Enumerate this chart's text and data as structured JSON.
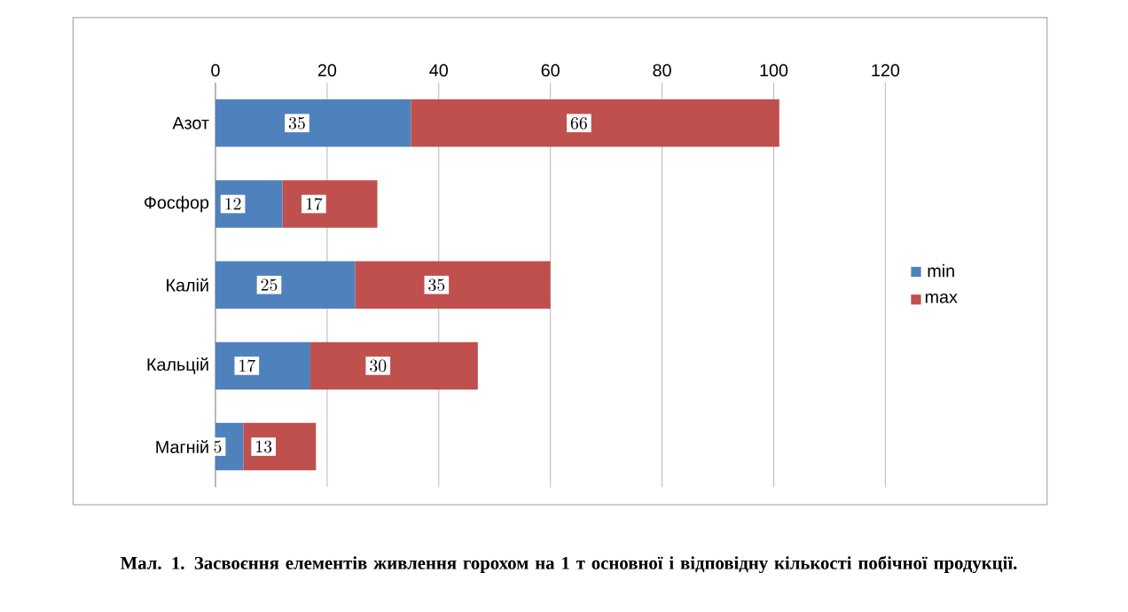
{
  "chart_data": {
    "type": "bar",
    "orientation": "horizontal",
    "stacked": true,
    "categories": [
      "Азот",
      "Фосфор",
      "Калій",
      "Кальцій",
      "Магній"
    ],
    "series": [
      {
        "name": "min",
        "color": "#4f81bd",
        "values": [
          35,
          12,
          25,
          17,
          5
        ]
      },
      {
        "name": "max",
        "color": "#c0504d",
        "values": [
          66,
          17,
          35,
          30,
          13
        ]
      }
    ],
    "xlim": [
      0,
      120
    ],
    "xticks": [
      0,
      20,
      40,
      60,
      80,
      100,
      120
    ],
    "grid": "x",
    "legend": "right",
    "data_labels": true,
    "annotations": [
      "**Мал. 1. Засвоєння елементів живлення горохом на 1 т основної і відповідну кількості побічної продукції.**"
    ]
  }
}
